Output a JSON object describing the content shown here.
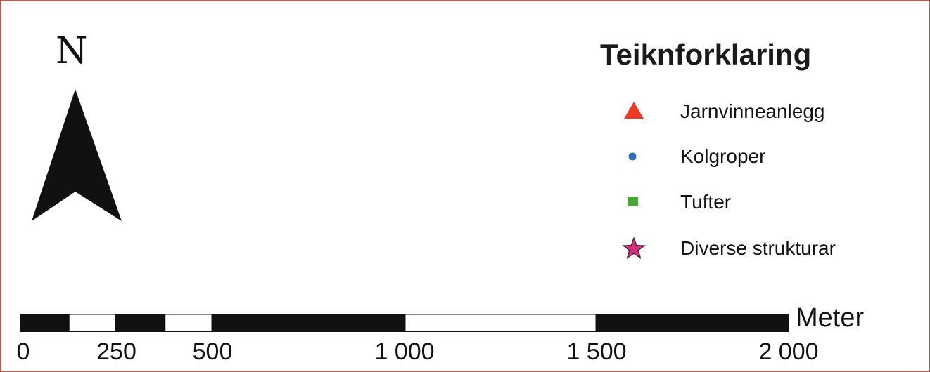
{
  "north": {
    "label": "N",
    "icon": "north-arrow-icon",
    "color": "#111111"
  },
  "legend": {
    "title": "Teiknforklaring",
    "items": [
      {
        "label": "Jarnvinneanlegg",
        "icon": "red-triangle-icon",
        "color": "#ee3a24"
      },
      {
        "label": "Kolgroper",
        "icon": "blue-dot-icon",
        "color": "#2f6fb3"
      },
      {
        "label": "Tufter",
        "icon": "green-square-icon",
        "color": "#4aa63c"
      },
      {
        "label": "Diverse strukturar",
        "icon": "magenta-star-icon",
        "color": "#cf2e7a"
      }
    ]
  },
  "scale": {
    "unit": "Meter",
    "max": 2000,
    "segments": [
      {
        "from": 0,
        "to": 125,
        "fill": "black"
      },
      {
        "from": 125,
        "to": 250,
        "fill": "white"
      },
      {
        "from": 250,
        "to": 375,
        "fill": "black"
      },
      {
        "from": 375,
        "to": 500,
        "fill": "white"
      },
      {
        "from": 500,
        "to": 1000,
        "fill": "black"
      },
      {
        "from": 1000,
        "to": 1500,
        "fill": "white"
      },
      {
        "from": 1500,
        "to": 2000,
        "fill": "black"
      }
    ],
    "ticks": [
      {
        "value": 0,
        "label": "0"
      },
      {
        "value": 250,
        "label": "250"
      },
      {
        "value": 500,
        "label": "500"
      },
      {
        "value": 1000,
        "label": "1 000"
      },
      {
        "value": 1500,
        "label": "1 500"
      },
      {
        "value": 2000,
        "label": "2 000"
      }
    ],
    "colors": {
      "black": "#111111",
      "white": "#ffffff"
    }
  }
}
